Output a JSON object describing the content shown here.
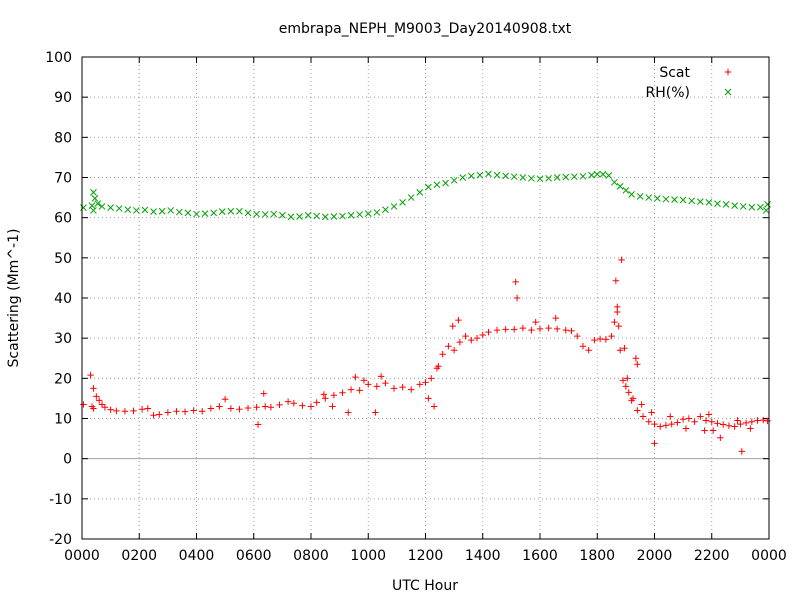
{
  "chart_data": {
    "type": "scatter",
    "title": "embrapa_NEPH_M9003_Day20140908.txt",
    "xlabel": "UTC Hour",
    "ylabel": "Scattering (Mm^-1)",
    "xlim": [
      0,
      24
    ],
    "ylim": [
      -20,
      100
    ],
    "x_ticks": [
      "0000",
      "0200",
      "0400",
      "0600",
      "0800",
      "1000",
      "1200",
      "1400",
      "1600",
      "1800",
      "2000",
      "2200",
      "0000"
    ],
    "y_ticks": [
      "-20",
      "-10",
      "0",
      "10",
      "20",
      "30",
      "40",
      "50",
      "60",
      "70",
      "80",
      "90",
      "100"
    ],
    "grid": true,
    "legend_position": "top-right",
    "series": [
      {
        "name": "Scat",
        "marker": "+",
        "color": "#ff0000",
        "points": [
          [
            0.05,
            13.5
          ],
          [
            0.3,
            20.8
          ],
          [
            0.4,
            17.5
          ],
          [
            0.5,
            15.5
          ],
          [
            0.6,
            14.5
          ],
          [
            0.7,
            13.5
          ],
          [
            0.8,
            12.8
          ],
          [
            1.0,
            12.2
          ],
          [
            1.2,
            11.9
          ],
          [
            1.5,
            11.8
          ],
          [
            1.8,
            11.9
          ],
          [
            2.1,
            12.3
          ],
          [
            2.3,
            12.5
          ],
          [
            2.5,
            10.8
          ],
          [
            2.7,
            11.0
          ],
          [
            3.0,
            11.5
          ],
          [
            3.3,
            11.8
          ],
          [
            3.6,
            11.7
          ],
          [
            3.9,
            12.0
          ],
          [
            4.2,
            11.8
          ],
          [
            4.5,
            12.5
          ],
          [
            4.8,
            13.0
          ],
          [
            5.0,
            14.8
          ],
          [
            5.2,
            12.5
          ],
          [
            5.5,
            12.3
          ],
          [
            5.8,
            12.6
          ],
          [
            6.1,
            12.8
          ],
          [
            6.4,
            13.0
          ],
          [
            6.6,
            12.8
          ],
          [
            6.9,
            13.4
          ],
          [
            7.2,
            14.2
          ],
          [
            7.4,
            13.8
          ],
          [
            7.7,
            13.2
          ],
          [
            8.0,
            13.0
          ],
          [
            8.2,
            14.0
          ],
          [
            8.5,
            15.0
          ],
          [
            8.8,
            15.8
          ],
          [
            9.1,
            16.4
          ],
          [
            9.4,
            17.2
          ],
          [
            9.7,
            17.0
          ],
          [
            10.0,
            18.5
          ],
          [
            10.3,
            18.0
          ],
          [
            10.6,
            18.8
          ],
          [
            10.9,
            17.5
          ],
          [
            11.2,
            17.8
          ],
          [
            11.5,
            17.2
          ],
          [
            11.8,
            18.5
          ],
          [
            12.0,
            19.0
          ],
          [
            12.2,
            20.0
          ],
          [
            12.4,
            22.5
          ],
          [
            12.6,
            26.0
          ],
          [
            12.8,
            28.0
          ],
          [
            13.0,
            27.0
          ],
          [
            13.2,
            29.0
          ],
          [
            13.4,
            30.5
          ],
          [
            13.6,
            29.5
          ],
          [
            13.8,
            30.0
          ],
          [
            14.0,
            30.8
          ],
          [
            14.2,
            31.5
          ],
          [
            14.5,
            32.0
          ],
          [
            14.8,
            32.2
          ],
          [
            15.1,
            32.2
          ],
          [
            15.4,
            32.5
          ],
          [
            15.7,
            32.0
          ],
          [
            16.0,
            32.3
          ],
          [
            16.3,
            32.5
          ],
          [
            16.6,
            32.3
          ],
          [
            16.9,
            32.0
          ],
          [
            17.1,
            31.8
          ],
          [
            17.3,
            30.5
          ],
          [
            17.5,
            28.0
          ],
          [
            17.7,
            27.0
          ],
          [
            17.9,
            29.5
          ],
          [
            18.1,
            29.8
          ],
          [
            18.3,
            29.7
          ],
          [
            18.5,
            30.5
          ],
          [
            18.6,
            34.0
          ],
          [
            18.7,
            36.5
          ],
          [
            18.8,
            27.0
          ],
          [
            18.9,
            19.5
          ],
          [
            19.0,
            18.0
          ],
          [
            19.1,
            16.5
          ],
          [
            19.2,
            14.5
          ],
          [
            19.4,
            12.0
          ],
          [
            19.6,
            10.5
          ],
          [
            19.8,
            9.2
          ],
          [
            20.0,
            8.6
          ],
          [
            20.2,
            8.0
          ],
          [
            20.4,
            8.3
          ],
          [
            20.6,
            8.6
          ],
          [
            20.8,
            9.0
          ],
          [
            21.0,
            9.8
          ],
          [
            21.2,
            10.0
          ],
          [
            21.4,
            9.2
          ],
          [
            21.6,
            10.5
          ],
          [
            21.8,
            9.5
          ],
          [
            22.0,
            9.2
          ],
          [
            22.2,
            8.8
          ],
          [
            22.4,
            8.5
          ],
          [
            22.6,
            8.2
          ],
          [
            22.8,
            8.0
          ],
          [
            23.0,
            8.6
          ],
          [
            23.2,
            8.9
          ],
          [
            23.4,
            9.2
          ],
          [
            23.6,
            9.5
          ],
          [
            23.8,
            9.6
          ],
          [
            23.95,
            9.4
          ],
          [
            0.35,
            13.0
          ],
          [
            0.4,
            12.5
          ],
          [
            6.15,
            8.5
          ],
          [
            6.35,
            16.2
          ],
          [
            8.45,
            16.0
          ],
          [
            8.75,
            13.0
          ],
          [
            9.3,
            11.5
          ],
          [
            9.55,
            20.3
          ],
          [
            9.85,
            19.5
          ],
          [
            10.25,
            11.5
          ],
          [
            10.45,
            20.5
          ],
          [
            12.1,
            15.0
          ],
          [
            12.3,
            13.0
          ],
          [
            12.45,
            23.0
          ],
          [
            12.95,
            33.0
          ],
          [
            13.15,
            34.5
          ],
          [
            15.15,
            44.0
          ],
          [
            15.2,
            40.0
          ],
          [
            15.85,
            34.0
          ],
          [
            16.55,
            35.0
          ],
          [
            18.65,
            44.3
          ],
          [
            18.7,
            37.8
          ],
          [
            18.75,
            33.0
          ],
          [
            18.85,
            49.5
          ],
          [
            18.95,
            27.5
          ],
          [
            19.05,
            20.0
          ],
          [
            19.25,
            15.0
          ],
          [
            19.35,
            25.0
          ],
          [
            19.4,
            23.5
          ],
          [
            19.55,
            13.5
          ],
          [
            19.9,
            11.5
          ],
          [
            20.0,
            3.8
          ],
          [
            20.55,
            10.5
          ],
          [
            21.1,
            7.5
          ],
          [
            21.75,
            7.0
          ],
          [
            21.9,
            11.0
          ],
          [
            22.05,
            7.0
          ],
          [
            22.3,
            5.2
          ],
          [
            22.9,
            9.5
          ],
          [
            23.05,
            1.8
          ],
          [
            23.35,
            7.5
          ]
        ]
      },
      {
        "name": "RH(%)",
        "marker": "x",
        "color": "#00a000",
        "points": [
          [
            0.05,
            62.5
          ],
          [
            0.4,
            66.3
          ],
          [
            0.45,
            64.8
          ],
          [
            0.55,
            63.5
          ],
          [
            0.7,
            62.8
          ],
          [
            1.0,
            62.5
          ],
          [
            1.3,
            62.3
          ],
          [
            1.6,
            62.0
          ],
          [
            1.9,
            61.8
          ],
          [
            2.2,
            61.9
          ],
          [
            2.5,
            61.5
          ],
          [
            2.8,
            61.6
          ],
          [
            3.1,
            61.8
          ],
          [
            3.4,
            61.4
          ],
          [
            3.7,
            61.2
          ],
          [
            4.0,
            60.9
          ],
          [
            4.3,
            61.0
          ],
          [
            4.6,
            61.2
          ],
          [
            4.9,
            61.5
          ],
          [
            5.2,
            61.6
          ],
          [
            5.5,
            61.6
          ],
          [
            5.8,
            61.2
          ],
          [
            6.1,
            60.9
          ],
          [
            6.4,
            60.8
          ],
          [
            6.7,
            60.9
          ],
          [
            7.0,
            60.6
          ],
          [
            7.3,
            60.2
          ],
          [
            7.6,
            60.3
          ],
          [
            7.9,
            60.6
          ],
          [
            8.2,
            60.4
          ],
          [
            8.5,
            60.2
          ],
          [
            8.8,
            60.3
          ],
          [
            9.1,
            60.4
          ],
          [
            9.4,
            60.6
          ],
          [
            9.7,
            60.8
          ],
          [
            10.0,
            61.0
          ],
          [
            10.3,
            61.3
          ],
          [
            10.6,
            62.0
          ],
          [
            10.9,
            62.8
          ],
          [
            11.2,
            63.8
          ],
          [
            11.5,
            65.0
          ],
          [
            11.8,
            66.3
          ],
          [
            12.1,
            67.6
          ],
          [
            12.4,
            68.2
          ],
          [
            12.7,
            68.6
          ],
          [
            13.0,
            69.3
          ],
          [
            13.3,
            70.0
          ],
          [
            13.6,
            70.4
          ],
          [
            13.9,
            70.6
          ],
          [
            14.2,
            70.9
          ],
          [
            14.5,
            70.6
          ],
          [
            14.8,
            70.4
          ],
          [
            15.1,
            70.2
          ],
          [
            15.4,
            70.0
          ],
          [
            15.7,
            69.8
          ],
          [
            16.0,
            69.7
          ],
          [
            16.3,
            69.8
          ],
          [
            16.6,
            70.0
          ],
          [
            16.9,
            70.1
          ],
          [
            17.2,
            70.2
          ],
          [
            17.5,
            70.3
          ],
          [
            17.8,
            70.6
          ],
          [
            18.0,
            70.8
          ],
          [
            18.2,
            70.8
          ],
          [
            18.4,
            70.5
          ],
          [
            18.6,
            68.8
          ],
          [
            18.8,
            67.8
          ],
          [
            19.0,
            66.8
          ],
          [
            19.2,
            65.8
          ],
          [
            19.5,
            65.3
          ],
          [
            19.8,
            65.0
          ],
          [
            20.1,
            64.8
          ],
          [
            20.4,
            64.6
          ],
          [
            20.7,
            64.5
          ],
          [
            21.0,
            64.4
          ],
          [
            21.3,
            64.2
          ],
          [
            21.6,
            64.0
          ],
          [
            21.9,
            63.8
          ],
          [
            22.2,
            63.5
          ],
          [
            22.5,
            63.3
          ],
          [
            22.8,
            63.0
          ],
          [
            23.1,
            62.8
          ],
          [
            23.4,
            62.6
          ],
          [
            23.7,
            62.6
          ],
          [
            23.95,
            63.3
          ],
          [
            0.35,
            63.0
          ],
          [
            0.4,
            61.8
          ],
          [
            23.9,
            61.8
          ]
        ]
      }
    ]
  }
}
